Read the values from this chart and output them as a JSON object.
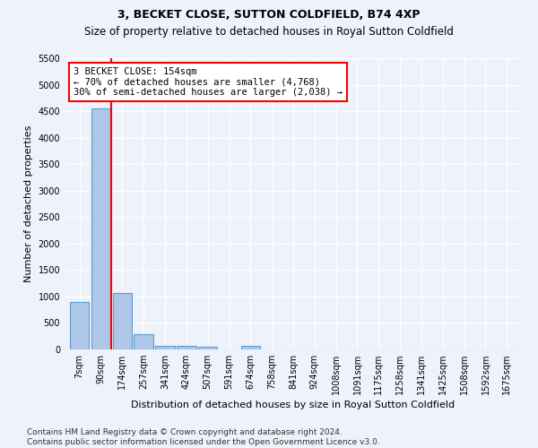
{
  "title": "3, BECKET CLOSE, SUTTON COLDFIELD, B74 4XP",
  "subtitle": "Size of property relative to detached houses in Royal Sutton Coldfield",
  "xlabel": "Distribution of detached houses by size in Royal Sutton Coldfield",
  "ylabel": "Number of detached properties",
  "footer_line1": "Contains HM Land Registry data © Crown copyright and database right 2024.",
  "footer_line2": "Contains public sector information licensed under the Open Government Licence v3.0.",
  "bar_labels": [
    "7sqm",
    "90sqm",
    "174sqm",
    "257sqm",
    "341sqm",
    "424sqm",
    "507sqm",
    "591sqm",
    "674sqm",
    "758sqm",
    "841sqm",
    "924sqm",
    "1008sqm",
    "1091sqm",
    "1175sqm",
    "1258sqm",
    "1341sqm",
    "1425sqm",
    "1508sqm",
    "1592sqm",
    "1675sqm"
  ],
  "bar_values": [
    900,
    4550,
    1070,
    290,
    75,
    60,
    50,
    0,
    65,
    0,
    0,
    0,
    0,
    0,
    0,
    0,
    0,
    0,
    0,
    0,
    0
  ],
  "bar_color": "#aec6e8",
  "bar_edge_color": "#5a9fd4",
  "property_line_x": 1.5,
  "property_line_color": "red",
  "annotation_text": "3 BECKET CLOSE: 154sqm\n← 70% of detached houses are smaller (4,768)\n30% of semi-detached houses are larger (2,038) →",
  "annotation_box_color": "white",
  "annotation_box_edgecolor": "red",
  "ylim": [
    0,
    5500
  ],
  "yticks": [
    0,
    500,
    1000,
    1500,
    2000,
    2500,
    3000,
    3500,
    4000,
    4500,
    5000,
    5500
  ],
  "title_fontsize": 9,
  "subtitle_fontsize": 8.5,
  "xlabel_fontsize": 8,
  "ylabel_fontsize": 8,
  "tick_fontsize": 7,
  "annotation_fontsize": 7.5,
  "footer_fontsize": 6.5,
  "background_color": "#eef2fa"
}
